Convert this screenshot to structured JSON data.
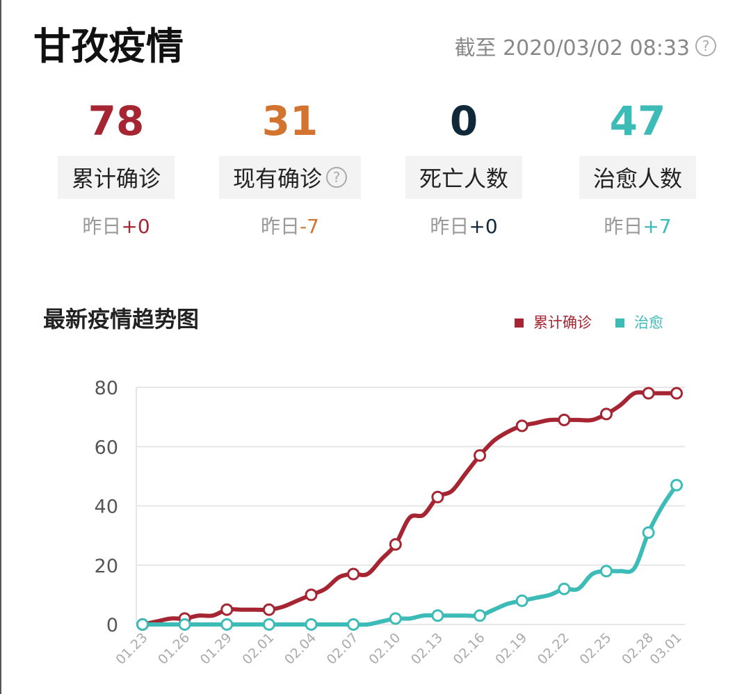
{
  "header": {
    "title": "甘孜疫情",
    "timestamp": "截至 2020/03/02 08:33",
    "help_icon": "question-circle-icon"
  },
  "stats": [
    {
      "value": "78",
      "label": "累计确诊",
      "delta_prefix": "昨日",
      "delta": "+0",
      "color": "#a52632"
    },
    {
      "value": "31",
      "label": "现有确诊",
      "delta_prefix": "昨日",
      "delta": "-7",
      "color": "#d2742f",
      "help": true
    },
    {
      "value": "0",
      "label": "死亡人数",
      "delta_prefix": "昨日",
      "delta": "+0",
      "color": "#10293a"
    },
    {
      "value": "47",
      "label": "治愈人数",
      "delta_prefix": "昨日",
      "delta": "+7",
      "color": "#3cbbb7"
    }
  ],
  "chart_data": {
    "type": "line",
    "title": "最新疫情趋势图",
    "legend_position": "top-right",
    "grid": true,
    "ylim": [
      0,
      80
    ],
    "yticks": [
      0,
      20,
      40,
      60,
      80
    ],
    "xticks": [
      "01.23",
      "01.26",
      "01.29",
      "02.01",
      "02.04",
      "02.07",
      "02.10",
      "02.13",
      "02.16",
      "02.19",
      "02.22",
      "02.25",
      "02.28",
      "03.01"
    ],
    "x": [
      "01.23",
      "01.24",
      "01.25",
      "01.26",
      "01.27",
      "01.28",
      "01.29",
      "01.30",
      "01.31",
      "02.01",
      "02.02",
      "02.03",
      "02.04",
      "02.05",
      "02.06",
      "02.07",
      "02.08",
      "02.09",
      "02.10",
      "02.11",
      "02.12",
      "02.13",
      "02.14",
      "02.15",
      "02.16",
      "02.17",
      "02.18",
      "02.19",
      "02.20",
      "02.21",
      "02.22",
      "02.23",
      "02.24",
      "02.25",
      "02.26",
      "02.27",
      "02.28",
      "02.29",
      "03.01"
    ],
    "series": [
      {
        "name": "累计确诊",
        "color": "#a52632",
        "values": [
          0,
          1,
          2,
          2,
          3,
          3,
          5,
          5,
          5,
          5,
          6,
          8,
          10,
          12,
          16,
          17,
          17,
          22,
          27,
          36,
          37,
          43,
          45,
          51,
          57,
          62,
          65,
          67,
          68,
          69,
          69,
          69,
          69,
          71,
          74,
          78,
          78,
          78,
          78
        ]
      },
      {
        "name": "治愈",
        "color": "#3cbbb7",
        "values": [
          0,
          0,
          0,
          0,
          0,
          0,
          0,
          0,
          0,
          0,
          0,
          0,
          0,
          0,
          0,
          0,
          0,
          1,
          2,
          2,
          3,
          3,
          3,
          3,
          3,
          5,
          7,
          8,
          9,
          10,
          12,
          12,
          17,
          18,
          18,
          19,
          31,
          40,
          47
        ]
      }
    ]
  }
}
